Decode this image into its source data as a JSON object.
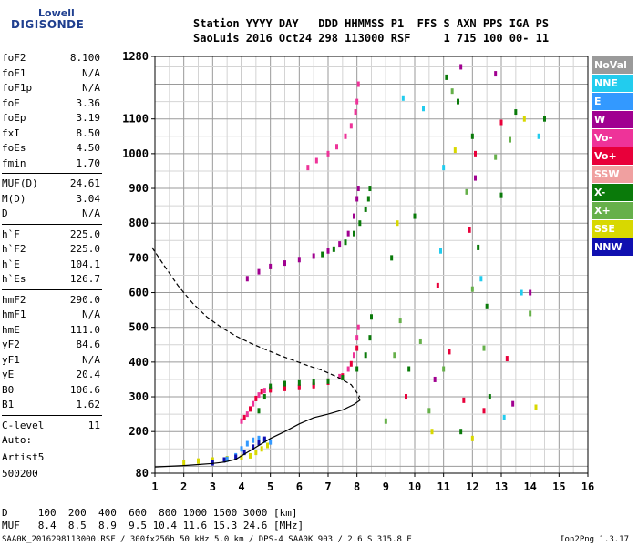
{
  "logo": {
    "line1": "Lowell",
    "line2": "DIGISONDE"
  },
  "header": {
    "line1": "Station YYYY DAY   DDD HHMMSS P1  FFS S AXN PPS IGA PS",
    "line2": "SaoLuis 2016 Oct24 298 113000 RSF     1 715 100 00- 11"
  },
  "params": [
    {
      "k": "foF2",
      "v": "8.100"
    },
    {
      "k": "foF1",
      "v": "N/A"
    },
    {
      "k": "foF1p",
      "v": "N/A"
    },
    {
      "k": "foE",
      "v": "3.36"
    },
    {
      "k": "foEp",
      "v": "3.19"
    },
    {
      "k": "fxI",
      "v": "8.50"
    },
    {
      "k": "foEs",
      "v": "4.50"
    },
    {
      "k": "fmin",
      "v": "1.70"
    },
    {
      "k": "MUF(D)",
      "v": "24.61"
    },
    {
      "k": "M(D)",
      "v": "3.04"
    },
    {
      "k": "D",
      "v": "N/A"
    },
    {
      "k": "h`F",
      "v": "225.0"
    },
    {
      "k": "h`F2",
      "v": "225.0"
    },
    {
      "k": "h`E",
      "v": "104.1"
    },
    {
      "k": "h`Es",
      "v": "126.7"
    },
    {
      "k": "hmF2",
      "v": "290.0"
    },
    {
      "k": "hmF1",
      "v": "N/A"
    },
    {
      "k": "hmE",
      "v": "111.0"
    },
    {
      "k": "yF2",
      "v": "84.6"
    },
    {
      "k": "yF1",
      "v": "N/A"
    },
    {
      "k": "yE",
      "v": "20.4"
    },
    {
      "k": "B0",
      "v": "106.6"
    },
    {
      "k": "B1",
      "v": "1.62"
    },
    {
      "k": "C-level",
      "v": "11"
    }
  ],
  "auto": {
    "label": "Auto:",
    "artist": "Artist5",
    "version": "500200"
  },
  "legend": [
    {
      "label": "NoVal",
      "color": "#9a9a9a"
    },
    {
      "label": "NNE",
      "color": "#22ccee"
    },
    {
      "label": "E",
      "color": "#3399ff"
    },
    {
      "label": "W",
      "color": "#a00090"
    },
    {
      "label": "Vo-",
      "color": "#ee3399"
    },
    {
      "label": "Vo+",
      "color": "#e8003a"
    },
    {
      "label": "SSW",
      "color": "#f0a0a0"
    },
    {
      "label": "X-",
      "color": "#0a7a0a"
    },
    {
      "label": "X+",
      "color": "#66b04a"
    },
    {
      "label": "SSE",
      "color": "#d8d800"
    },
    {
      "label": "NNW",
      "color": "#1010b0"
    }
  ],
  "bottom": {
    "line1": "D     100  200  400  600  800 1000 1500 3000 [km]",
    "line2": "MUF   8.4  8.5  8.9  9.5 10.4 11.6 15.3 24.6 [MHz]"
  },
  "footer": "SAA0K_2016298113000.RSF / 300fx256h 50 kHz 5.0 km / DPS-4 SAA0K 903 / 2.6 S 315.8 E",
  "version": "Ion2Png 1.3.17",
  "chart_data": {
    "type": "scatter",
    "xlim": [
      1,
      16
    ],
    "ylim": [
      80,
      1280
    ],
    "x_ticks": [
      "1",
      "2",
      "3",
      "4",
      "5",
      "6",
      "7",
      "8",
      "9",
      "10",
      "11",
      "12",
      "13",
      "14",
      "15",
      "16"
    ],
    "y_ticks": [
      "80",
      "200",
      "300",
      "400",
      "500",
      "600",
      "700",
      "800",
      "900",
      "1000",
      "1100",
      "1280"
    ],
    "grid": true,
    "series": [
      {
        "legend": "Vo-",
        "color": "#ee3399",
        "points": [
          [
            4.0,
            230
          ],
          [
            4.2,
            250
          ],
          [
            4.4,
            280
          ],
          [
            4.6,
            305
          ],
          [
            4.8,
            318
          ],
          [
            5.0,
            322
          ],
          [
            5.5,
            325
          ],
          [
            6.0,
            328
          ],
          [
            6.5,
            335
          ],
          [
            7.0,
            345
          ],
          [
            7.4,
            358
          ],
          [
            7.7,
            380
          ],
          [
            7.9,
            420
          ],
          [
            8.0,
            470
          ],
          [
            8.05,
            500
          ]
        ]
      },
      {
        "legend": "Vo+",
        "color": "#e8003a",
        "points": [
          [
            4.1,
            240
          ],
          [
            4.3,
            265
          ],
          [
            4.5,
            295
          ],
          [
            4.7,
            315
          ],
          [
            5.0,
            320
          ],
          [
            5.5,
            324
          ],
          [
            6.0,
            327
          ],
          [
            6.5,
            332
          ],
          [
            7.0,
            342
          ],
          [
            7.5,
            360
          ],
          [
            7.8,
            395
          ],
          [
            8.0,
            440
          ]
        ]
      },
      {
        "legend": "X-",
        "color": "#0a7a0a",
        "points": [
          [
            4.6,
            260
          ],
          [
            4.8,
            300
          ],
          [
            5.0,
            330
          ],
          [
            5.5,
            338
          ],
          [
            6.0,
            340
          ],
          [
            6.5,
            342
          ],
          [
            7.0,
            345
          ],
          [
            7.5,
            355
          ],
          [
            8.0,
            380
          ],
          [
            8.3,
            420
          ],
          [
            8.45,
            470
          ],
          [
            8.5,
            530
          ]
        ]
      },
      {
        "legend": "W",
        "color": "#a00090",
        "points": [
          [
            4.2,
            640
          ],
          [
            4.6,
            660
          ],
          [
            5.0,
            675
          ],
          [
            5.5,
            685
          ],
          [
            6.0,
            695
          ],
          [
            6.5,
            705
          ],
          [
            7.0,
            720
          ],
          [
            7.4,
            740
          ],
          [
            7.7,
            770
          ],
          [
            7.9,
            820
          ],
          [
            8.0,
            870
          ],
          [
            8.05,
            900
          ]
        ]
      },
      {
        "legend": "X-",
        "color": "#0a7a0a",
        "points": [
          [
            6.8,
            710
          ],
          [
            7.2,
            725
          ],
          [
            7.6,
            745
          ],
          [
            7.9,
            770
          ],
          [
            8.1,
            800
          ],
          [
            8.3,
            840
          ],
          [
            8.4,
            870
          ],
          [
            8.45,
            900
          ]
        ]
      },
      {
        "legend": "Vo-",
        "color": "#ee3399",
        "points": [
          [
            6.3,
            960
          ],
          [
            6.6,
            980
          ],
          [
            7.0,
            1000
          ],
          [
            7.3,
            1020
          ],
          [
            7.6,
            1050
          ],
          [
            7.8,
            1080
          ],
          [
            7.95,
            1120
          ],
          [
            8.0,
            1150
          ],
          [
            8.05,
            1200
          ]
        ]
      },
      {
        "legend": "SSE",
        "color": "#d8d800",
        "points": [
          [
            2.0,
            110
          ],
          [
            2.5,
            115
          ],
          [
            3.0,
            118
          ],
          [
            3.5,
            122
          ],
          [
            4.0,
            125
          ],
          [
            4.3,
            130
          ],
          [
            4.5,
            140
          ],
          [
            4.7,
            150
          ],
          [
            4.9,
            160
          ]
        ]
      },
      {
        "legend": "E",
        "color": "#3399ff",
        "points": [
          [
            3.5,
            120
          ],
          [
            3.8,
            130
          ],
          [
            4.0,
            150
          ],
          [
            4.2,
            165
          ],
          [
            4.4,
            175
          ],
          [
            4.6,
            180
          ],
          [
            4.8,
            175
          ],
          [
            5.0,
            170
          ]
        ]
      },
      {
        "legend": "NNW",
        "color": "#1010b0",
        "points": [
          [
            3.0,
            110
          ],
          [
            3.4,
            118
          ],
          [
            3.8,
            126
          ],
          [
            4.1,
            140
          ],
          [
            4.4,
            155
          ],
          [
            4.6,
            168
          ],
          [
            4.8,
            178
          ]
        ]
      },
      {
        "legend": "X+",
        "color": "#66b04a",
        "points": [
          [
            9.3,
            420
          ],
          [
            9.5,
            520
          ],
          [
            10.2,
            460
          ],
          [
            11.0,
            380
          ],
          [
            11.3,
            1180
          ],
          [
            11.8,
            890
          ],
          [
            12.0,
            610
          ],
          [
            12.4,
            440
          ],
          [
            12.8,
            990
          ],
          [
            13.3,
            1040
          ],
          [
            14.0,
            540
          ],
          [
            9.0,
            230
          ],
          [
            10.5,
            260
          ]
        ]
      },
      {
        "legend": "X-",
        "color": "#0a7a0a",
        "points": [
          [
            9.2,
            700
          ],
          [
            10.0,
            820
          ],
          [
            11.1,
            1220
          ],
          [
            11.5,
            1150
          ],
          [
            12.0,
            1050
          ],
          [
            12.2,
            730
          ],
          [
            12.6,
            300
          ],
          [
            13.0,
            880
          ],
          [
            13.5,
            1120
          ],
          [
            14.5,
            1100
          ],
          [
            9.8,
            380
          ],
          [
            11.6,
            200
          ],
          [
            12.5,
            560
          ]
        ]
      },
      {
        "legend": "Vo+",
        "color": "#e8003a",
        "points": [
          [
            11.2,
            430
          ],
          [
            11.7,
            290
          ],
          [
            12.1,
            1000
          ],
          [
            12.4,
            260
          ],
          [
            13.0,
            1090
          ],
          [
            13.2,
            410
          ],
          [
            11.9,
            780
          ],
          [
            10.8,
            620
          ],
          [
            9.7,
            300
          ]
        ]
      },
      {
        "legend": "NNE",
        "color": "#22ccee",
        "points": [
          [
            9.6,
            1160
          ],
          [
            10.3,
            1130
          ],
          [
            11.0,
            960
          ],
          [
            12.3,
            640
          ],
          [
            13.7,
            600
          ],
          [
            14.3,
            1050
          ],
          [
            13.1,
            240
          ],
          [
            10.9,
            720
          ]
        ]
      },
      {
        "legend": "W",
        "color": "#a00090",
        "points": [
          [
            11.6,
            1250
          ],
          [
            12.8,
            1230
          ],
          [
            14.0,
            600
          ],
          [
            12.1,
            930
          ],
          [
            10.7,
            350
          ],
          [
            13.4,
            280
          ]
        ]
      },
      {
        "legend": "SSE",
        "color": "#d8d800",
        "points": [
          [
            9.4,
            800
          ],
          [
            10.6,
            200
          ],
          [
            12.0,
            180
          ],
          [
            13.8,
            1100
          ],
          [
            14.2,
            270
          ],
          [
            11.4,
            1010
          ]
        ]
      }
    ],
    "curves": [
      {
        "legend": "profile",
        "style": "dashed",
        "color": "#000000",
        "points": [
          [
            0.9,
            730
          ],
          [
            1.3,
            680
          ],
          [
            1.8,
            620
          ],
          [
            2.3,
            570
          ],
          [
            2.8,
            530
          ],
          [
            3.3,
            500
          ],
          [
            3.8,
            475
          ],
          [
            4.3,
            455
          ],
          [
            4.8,
            437
          ],
          [
            5.3,
            420
          ],
          [
            5.8,
            405
          ],
          [
            6.3,
            390
          ],
          [
            6.8,
            376
          ],
          [
            7.3,
            358
          ],
          [
            7.8,
            335
          ],
          [
            8.1,
            300
          ]
        ]
      },
      {
        "legend": "profile",
        "style": "solid",
        "color": "#000000",
        "points": [
          [
            1.0,
            98
          ],
          [
            1.5,
            100
          ],
          [
            2.0,
            102
          ],
          [
            2.5,
            105
          ],
          [
            3.0,
            108
          ],
          [
            3.4,
            112
          ],
          [
            3.8,
            120
          ],
          [
            4.2,
            140
          ],
          [
            4.6,
            160
          ],
          [
            5.0,
            180
          ],
          [
            5.5,
            200
          ],
          [
            6.0,
            222
          ],
          [
            6.5,
            240
          ],
          [
            7.0,
            250
          ],
          [
            7.5,
            262
          ],
          [
            7.9,
            278
          ],
          [
            8.1,
            290
          ],
          [
            8.05,
            300
          ]
        ]
      }
    ]
  }
}
